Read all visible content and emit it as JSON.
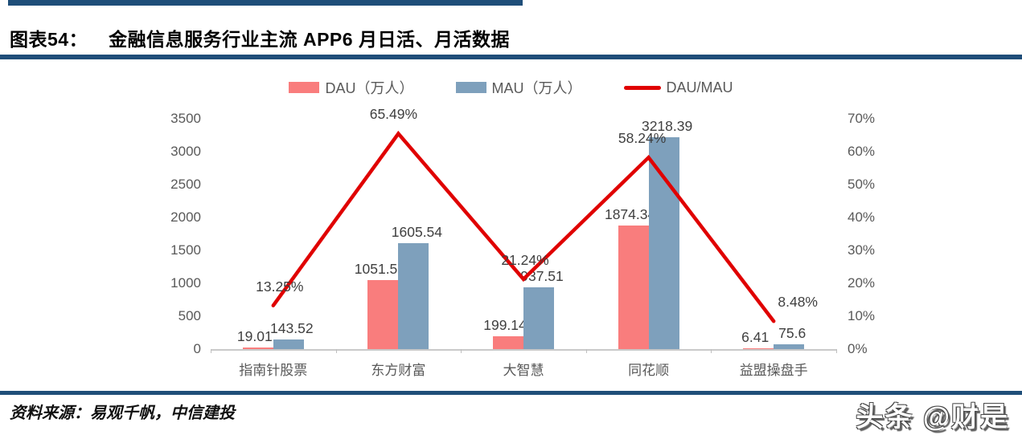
{
  "page": {
    "figure_label": "图表54：",
    "figure_title": "金融信息服务行业主流 APP6 月日活、月活数据",
    "source_text": "资料来源：易观千帆，中信建投",
    "watermark": "头条 @财是",
    "accent_color": "#1F4E79"
  },
  "chart_data": {
    "type": "bar",
    "subtype": "bar-line-combo",
    "title": "金融信息服务行业主流 APP6 月日活、月活数据",
    "categories": [
      "指南针股票",
      "东方财富",
      "大智慧",
      "同花顺",
      "益盟操盘手"
    ],
    "series": [
      {
        "name": "DAU（万人）",
        "type": "bar",
        "color": "#f97d7d",
        "axis": "left",
        "values": [
          19.01,
          1051.51,
          199.14,
          1874.34,
          6.41
        ],
        "labels": [
          "19.01",
          "1051.51",
          "199.14",
          "1874.34",
          "6.41"
        ]
      },
      {
        "name": "MAU（万人）",
        "type": "bar",
        "color": "#7ea0bc",
        "axis": "left",
        "values": [
          143.52,
          1605.54,
          937.51,
          3218.39,
          75.6
        ],
        "labels": [
          "143.52",
          "1605.54",
          "937.51",
          "3218.39",
          "75.6"
        ]
      },
      {
        "name": "DAU/MAU",
        "type": "line",
        "color": "#e00000",
        "axis": "right",
        "values": [
          13.25,
          65.49,
          21.24,
          58.24,
          8.48
        ],
        "labels": [
          "13.25%",
          "65.49%",
          "21.24%",
          "58.24%",
          "8.48%"
        ]
      }
    ],
    "legend": [
      "DAU（万人）",
      "MAU（万人）",
      "DAU/MAU"
    ],
    "legend_position": "top-center",
    "grid": false,
    "left_axis": {
      "min": 0,
      "max": 3500,
      "ticks": [
        "3500",
        "3000",
        "2500",
        "2000",
        "1500",
        "1000",
        "500",
        "0"
      ]
    },
    "right_axis": {
      "min": 0,
      "max": 70,
      "unit": "%",
      "ticks": [
        "70%",
        "60%",
        "50%",
        "40%",
        "30%",
        "20%",
        "10%",
        "0%"
      ]
    }
  }
}
